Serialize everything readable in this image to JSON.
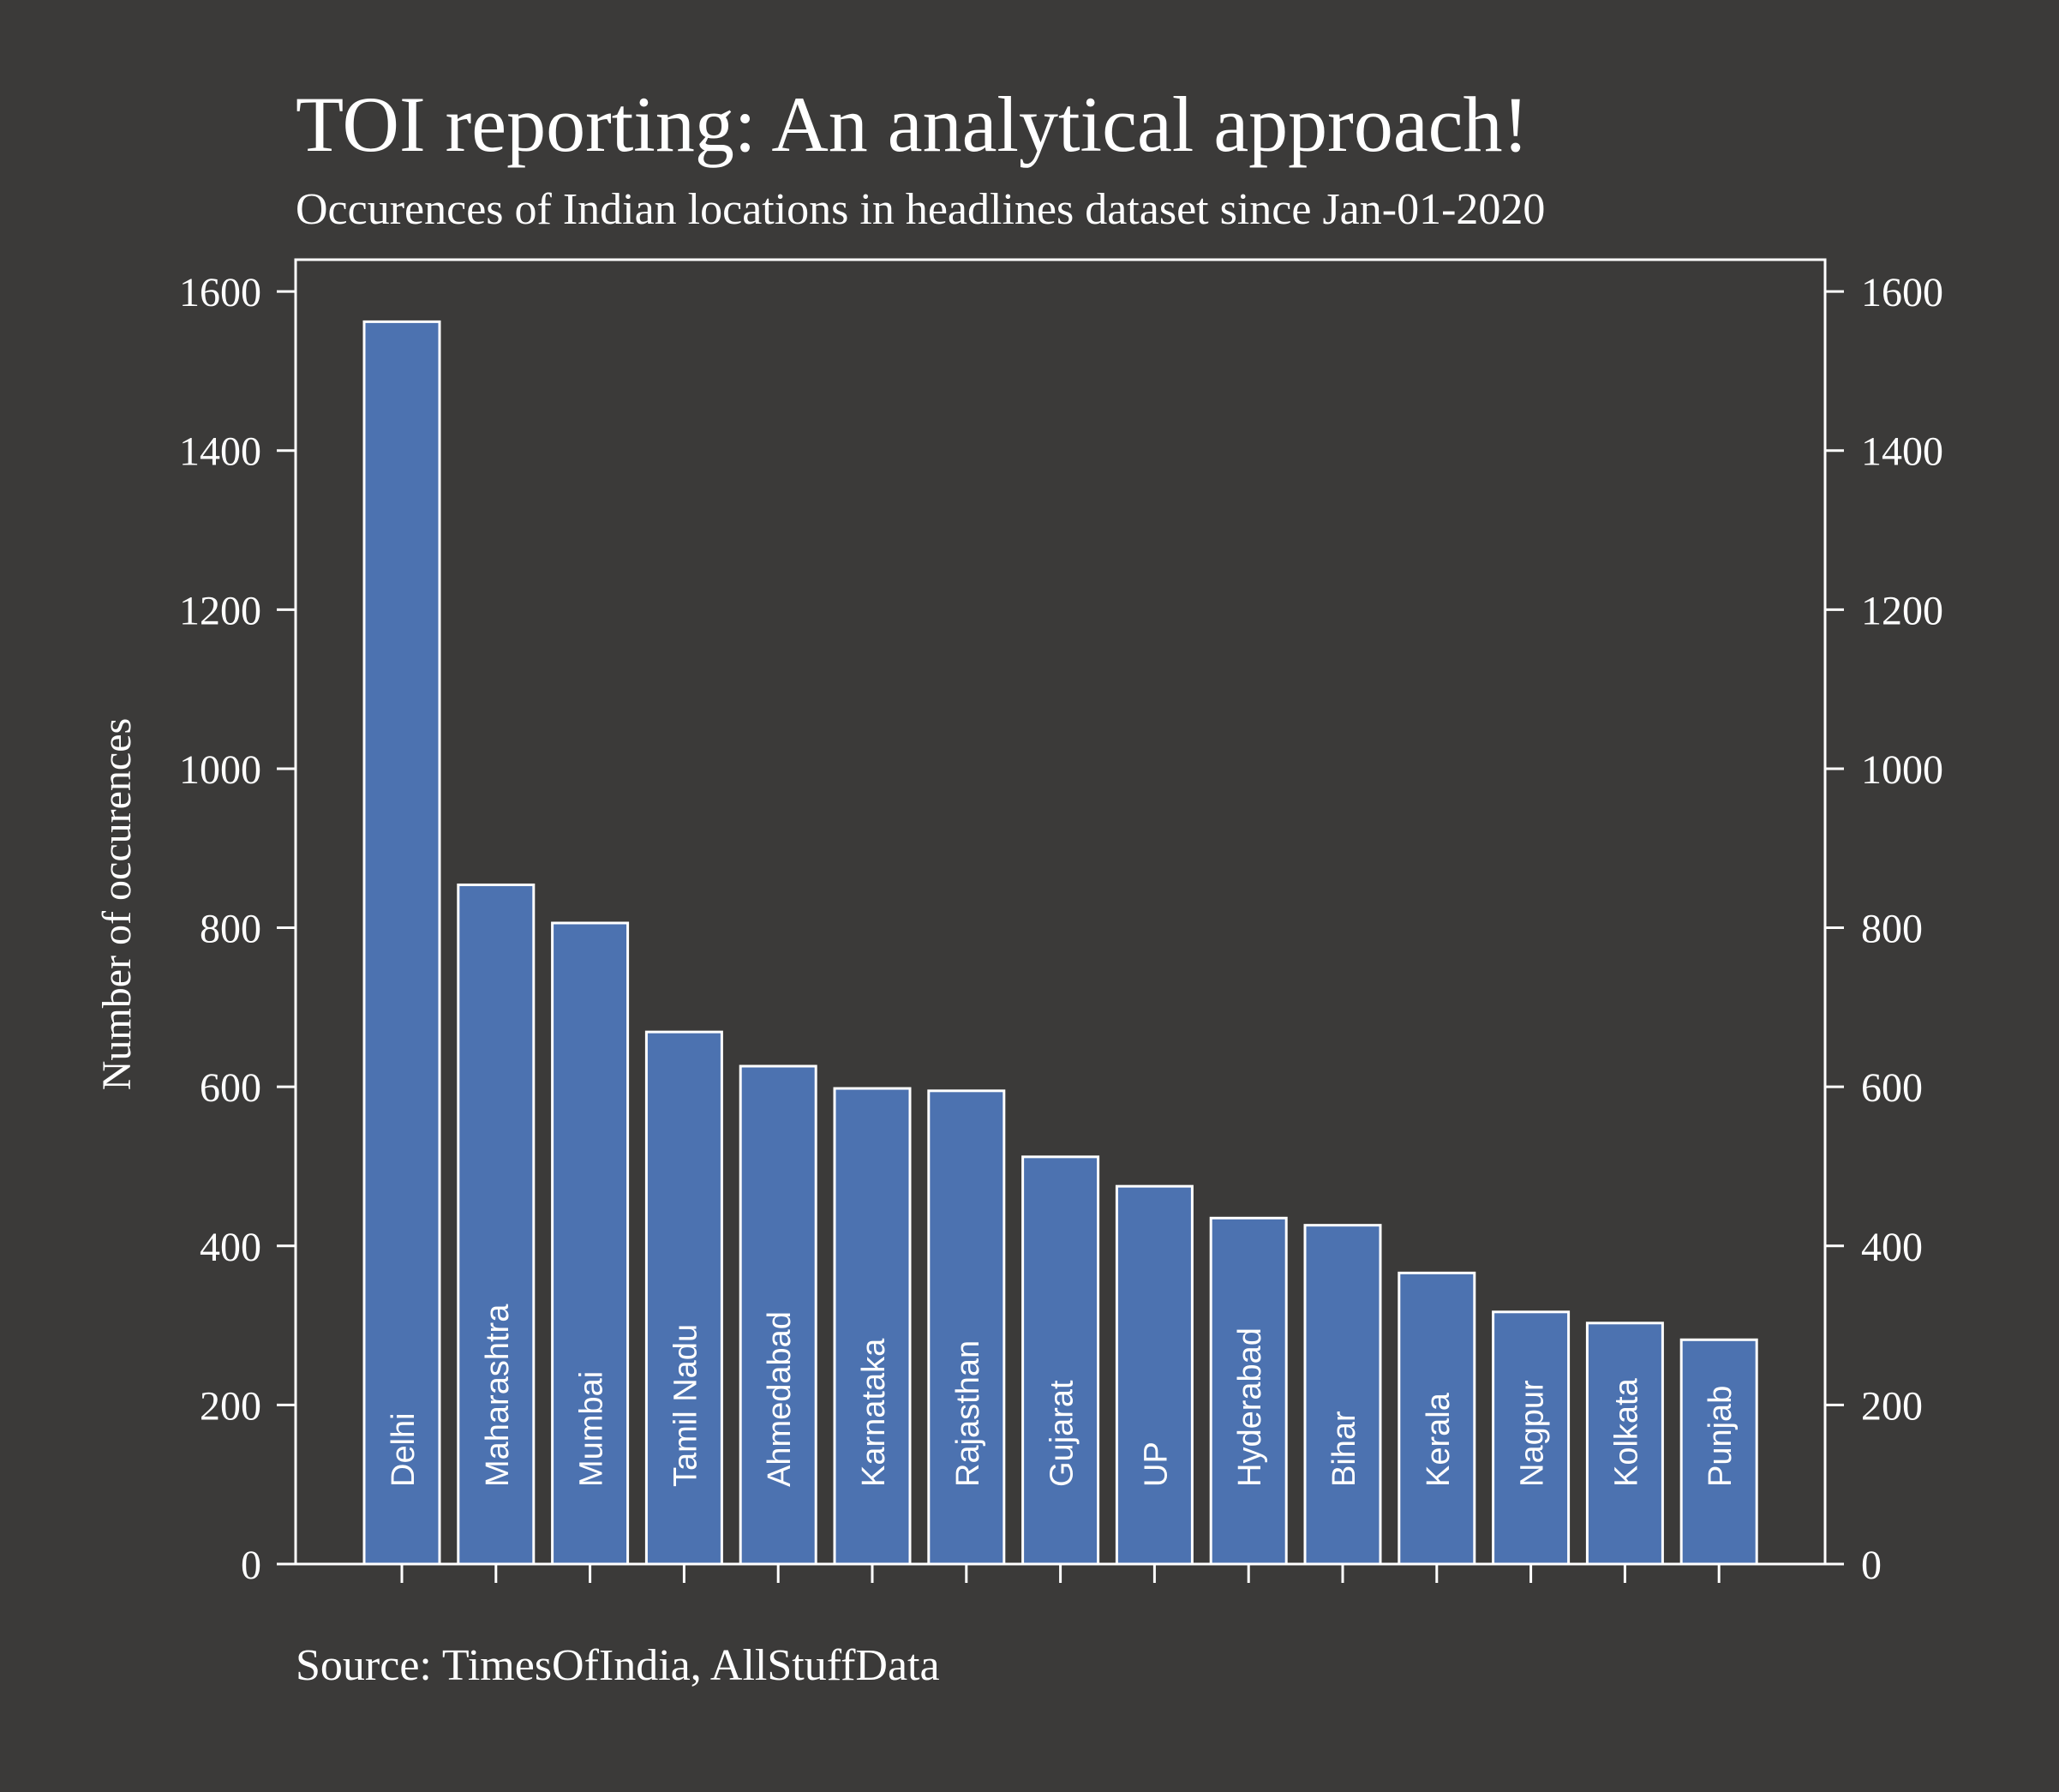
{
  "chart_data": {
    "type": "bar",
    "title": "TOI reporting: An analytical approach!",
    "subtitle": "Occurences of Indian locations in headlines dataset since Jan-01-2020",
    "ylabel": "Number of occurences",
    "xlabel": "",
    "source": "Source: TimesOfIndia, AllStuffData",
    "categories": [
      "Delhi",
      "Maharashtra",
      "Mumbai",
      "Tamil Nadu",
      "Ahmedabad",
      "Karnataka",
      "Rajasthan",
      "Gujarat",
      "UP",
      "Hyderabad",
      "Bihar",
      "Kerala",
      "Nagpur",
      "Kolkata",
      "Punjab"
    ],
    "values": [
      1562,
      854,
      806,
      669,
      626,
      598,
      595,
      512,
      475,
      435,
      426,
      366,
      317,
      303,
      282
    ],
    "ylim": [
      0,
      1640
    ],
    "yticks": [
      0,
      200,
      400,
      600,
      800,
      1000,
      1200,
      1400,
      1600
    ],
    "secondary_y_axis": true,
    "grid": false,
    "colors": {
      "background": "#3b3a39",
      "bar_fill": "#4c72b0",
      "bar_edge": "#ffffff",
      "text": "#ffffff"
    }
  }
}
